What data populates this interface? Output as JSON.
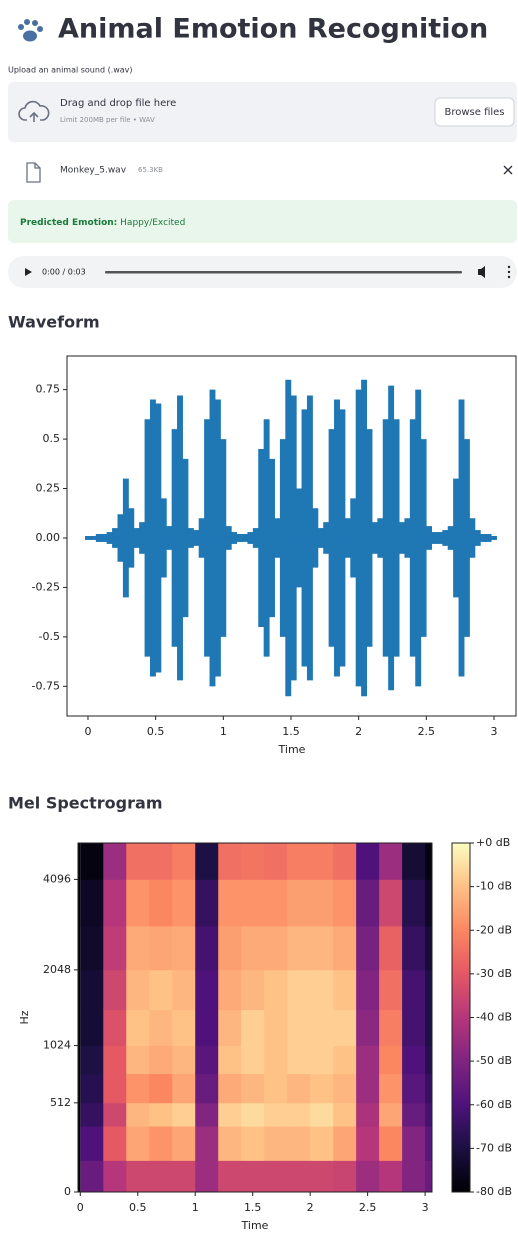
{
  "header": {
    "title": "Animal Emotion Recognition"
  },
  "upload": {
    "label": "Upload an animal sound (.wav)",
    "drop_text": "Drag and drop file here",
    "limit_text": "Limit 200MB per file • WAV",
    "button": "Browse files"
  },
  "file": {
    "name": "Monkey_5.wav",
    "size": "65.3KB"
  },
  "result": {
    "label": "Predicted Emotion:",
    "value": "Happy/Excited"
  },
  "audio": {
    "time": "0:00 / 0:03"
  },
  "chart_data": [
    {
      "type": "waveform",
      "title": "Waveform",
      "x_label": "Time",
      "color": "#1f77b4",
      "x": [
        0,
        0.04,
        0.08,
        0.12,
        0.16,
        0.2,
        0.24,
        0.28,
        0.32,
        0.36,
        0.4,
        0.44,
        0.48,
        0.52,
        0.56,
        0.6,
        0.64,
        0.68,
        0.72,
        0.76,
        0.8,
        0.84,
        0.88,
        0.92,
        0.96,
        1,
        1.04,
        1.08,
        1.12,
        1.16,
        1.2,
        1.24,
        1.28,
        1.32,
        1.36,
        1.4,
        1.44,
        1.48,
        1.52,
        1.56,
        1.6,
        1.64,
        1.68,
        1.72,
        1.76,
        1.8,
        1.84,
        1.88,
        1.92,
        1.96,
        2,
        2.04,
        2.08,
        2.12,
        2.16,
        2.2,
        2.24,
        2.28,
        2.32,
        2.36,
        2.4,
        2.44,
        2.48,
        2.52,
        2.56,
        2.6,
        2.64,
        2.68,
        2.72,
        2.76,
        2.8,
        2.84,
        2.88,
        2.92,
        2.96,
        3
      ],
      "values": [
        0.01,
        0.01,
        0.02,
        0.02,
        0.03,
        0.05,
        0.12,
        0.3,
        0.15,
        0.05,
        0.08,
        0.6,
        0.7,
        0.68,
        0.2,
        0.06,
        0.55,
        0.72,
        0.4,
        0.05,
        0.04,
        0.1,
        0.6,
        0.75,
        0.7,
        0.5,
        0.06,
        0.03,
        0.02,
        0.02,
        0.03,
        0.05,
        0.45,
        0.6,
        0.4,
        0.1,
        0.5,
        0.8,
        0.72,
        0.25,
        0.65,
        0.72,
        0.15,
        0.05,
        0.08,
        0.55,
        0.7,
        0.65,
        0.1,
        0.2,
        0.75,
        0.8,
        0.55,
        0.08,
        0.1,
        0.6,
        0.77,
        0.6,
        0.08,
        0.1,
        0.6,
        0.75,
        0.5,
        0.06,
        0.03,
        0.03,
        0.04,
        0.06,
        0.3,
        0.7,
        0.5,
        0.1,
        0.04,
        0.02,
        0.02,
        0.01
      ],
      "xlim": [
        -0.155,
        3.17
      ],
      "ylim": [
        -0.9,
        0.92
      ],
      "xticks": [
        0,
        0.5,
        1,
        1.5,
        2,
        2.5,
        3
      ],
      "yticks": [
        0.75,
        0.5,
        0.25,
        {
          "value": 0,
          "label": "0.00"
        },
        -0.25,
        -0.5,
        -0.75
      ]
    },
    {
      "type": "heatmap",
      "title": "Mel Spectrogram",
      "x_label": "Time",
      "y_label": "Hz",
      "y_scale": "mel",
      "colormap": "magma",
      "x_bins": [
        0,
        0.2,
        0.4,
        0.6,
        0.8,
        1,
        1.2,
        1.4,
        1.6,
        1.8,
        2,
        2.2,
        2.4,
        2.6,
        2.8,
        3,
        3.06
      ],
      "y_bins": [
        0,
        150,
        350,
        512,
        750,
        1024,
        1450,
        2048,
        2900,
        4096,
        5300
      ],
      "z": [
        [
          -55,
          -60,
          -65,
          -68,
          -70,
          -72,
          -72,
          -74,
          -75,
          -78
        ],
        [
          -40,
          -30,
          -35,
          -30,
          -30,
          -32,
          -35,
          -38,
          -40,
          -45
        ],
        [
          -35,
          -15,
          -12,
          -18,
          -12,
          -10,
          -12,
          -14,
          -18,
          -25
        ],
        [
          -35,
          -18,
          -10,
          -20,
          -14,
          -12,
          -10,
          -15,
          -20,
          -25
        ],
        [
          -35,
          -15,
          -8,
          -15,
          -12,
          -10,
          -12,
          -14,
          -18,
          -22
        ],
        [
          -45,
          -45,
          -50,
          -55,
          -58,
          -60,
          -60,
          -62,
          -65,
          -70
        ],
        [
          -35,
          -12,
          -8,
          -14,
          -10,
          -12,
          -14,
          -16,
          -18,
          -25
        ],
        [
          -35,
          -10,
          -6,
          -12,
          -8,
          -8,
          -12,
          -14,
          -18,
          -24
        ],
        [
          -35,
          -12,
          -8,
          -10,
          -10,
          -10,
          -10,
          -14,
          -18,
          -25
        ],
        [
          -35,
          -12,
          -8,
          -12,
          -8,
          -8,
          -8,
          -12,
          -16,
          -22
        ],
        [
          -35,
          -10,
          -6,
          -10,
          -8,
          -8,
          -8,
          -12,
          -16,
          -22
        ],
        [
          -36,
          -15,
          -10,
          -12,
          -10,
          -8,
          -10,
          -14,
          -18,
          -25
        ],
        [
          -45,
          -40,
          -42,
          -45,
          -45,
          -48,
          -50,
          -52,
          -55,
          -60
        ],
        [
          -40,
          -20,
          -15,
          -18,
          -20,
          -22,
          -25,
          -28,
          -35,
          -45
        ],
        [
          -50,
          -50,
          -55,
          -58,
          -60,
          -62,
          -62,
          -65,
          -68,
          -72
        ],
        [
          -55,
          -58,
          -62,
          -65,
          -68,
          -70,
          -70,
          -72,
          -75,
          -78
        ]
      ],
      "xlim": [
        -0.02,
        3.06
      ],
      "ylim": [
        0,
        5300
      ],
      "xticks": [
        0,
        0.5,
        1,
        1.5,
        2,
        2.5,
        3
      ],
      "yticks": [
        0,
        512,
        1024,
        2048,
        4096
      ],
      "clim": [
        -80,
        0
      ],
      "cticks": [
        {
          "value": 0,
          "label": "+0 dB"
        },
        {
          "value": -10,
          "label": "-10 dB"
        },
        {
          "value": -20,
          "label": "-20 dB"
        },
        {
          "value": -30,
          "label": "-30 dB"
        },
        {
          "value": -40,
          "label": "-40 dB"
        },
        {
          "value": -50,
          "label": "-50 dB"
        },
        {
          "value": -60,
          "label": "-60 dB"
        },
        {
          "value": -70,
          "label": "-70 dB"
        },
        {
          "value": -80,
          "label": "-80 dB"
        }
      ]
    }
  ]
}
